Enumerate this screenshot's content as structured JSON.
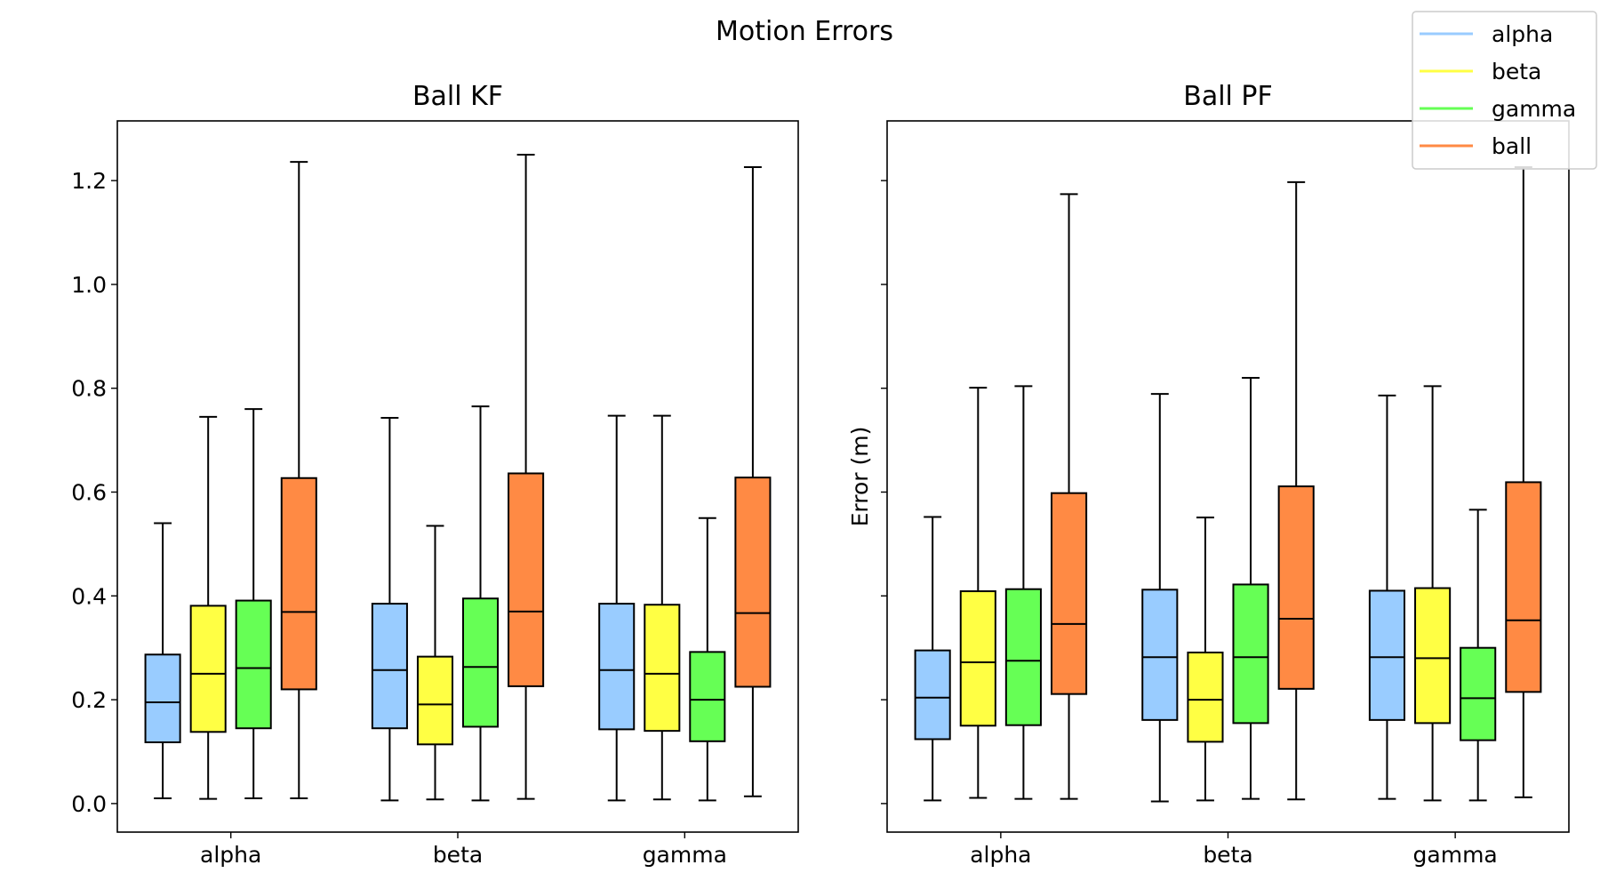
{
  "figure_title": "Motion Errors",
  "chart_data": [
    {
      "type": "box",
      "title": "Ball KF",
      "xlabel": "",
      "ylabel": "",
      "categories": [
        "alpha",
        "beta",
        "gamma"
      ],
      "ylim": [
        -0.055,
        1.315
      ],
      "yticks": [
        "0.0",
        "0.2",
        "0.4",
        "0.6",
        "0.8",
        "1.0",
        "1.2"
      ],
      "show_ytick_labels": true,
      "series": [
        {
          "name": "alpha",
          "color": "#99ccff",
          "boxes": [
            {
              "min": 0.01,
              "q1": 0.118,
              "median": 0.195,
              "q3": 0.287,
              "max": 0.54
            },
            {
              "min": 0.006,
              "q1": 0.145,
              "median": 0.257,
              "q3": 0.385,
              "max": 0.743
            },
            {
              "min": 0.006,
              "q1": 0.143,
              "median": 0.257,
              "q3": 0.385,
              "max": 0.747
            }
          ]
        },
        {
          "name": "beta",
          "color": "#ffff44",
          "boxes": [
            {
              "min": 0.009,
              "q1": 0.138,
              "median": 0.25,
              "q3": 0.381,
              "max": 0.745
            },
            {
              "min": 0.008,
              "q1": 0.114,
              "median": 0.191,
              "q3": 0.283,
              "max": 0.535
            },
            {
              "min": 0.008,
              "q1": 0.14,
              "median": 0.25,
              "q3": 0.383,
              "max": 0.747
            }
          ]
        },
        {
          "name": "gamma",
          "color": "#66ff55",
          "boxes": [
            {
              "min": 0.01,
              "q1": 0.145,
              "median": 0.261,
              "q3": 0.391,
              "max": 0.76
            },
            {
              "min": 0.006,
              "q1": 0.148,
              "median": 0.263,
              "q3": 0.395,
              "max": 0.765
            },
            {
              "min": 0.006,
              "q1": 0.12,
              "median": 0.2,
              "q3": 0.292,
              "max": 0.55
            }
          ]
        },
        {
          "name": "ball",
          "color": "#ff8a44",
          "boxes": [
            {
              "min": 0.01,
              "q1": 0.22,
              "median": 0.369,
              "q3": 0.627,
              "max": 1.236
            },
            {
              "min": 0.009,
              "q1": 0.226,
              "median": 0.37,
              "q3": 0.636,
              "max": 1.25
            },
            {
              "min": 0.014,
              "q1": 0.225,
              "median": 0.367,
              "q3": 0.628,
              "max": 1.226
            }
          ]
        }
      ]
    },
    {
      "type": "box",
      "title": "Ball PF",
      "xlabel": "",
      "ylabel": "Error (m)",
      "categories": [
        "alpha",
        "beta",
        "gamma"
      ],
      "ylim": [
        -0.055,
        1.315
      ],
      "yticks": [
        "0.0",
        "0.2",
        "0.4",
        "0.6",
        "0.8",
        "1.0",
        "1.2"
      ],
      "show_ytick_labels": false,
      "series": [
        {
          "name": "alpha",
          "color": "#99ccff",
          "boxes": [
            {
              "min": 0.006,
              "q1": 0.124,
              "median": 0.204,
              "q3": 0.295,
              "max": 0.552
            },
            {
              "min": 0.004,
              "q1": 0.161,
              "median": 0.282,
              "q3": 0.412,
              "max": 0.789
            },
            {
              "min": 0.009,
              "q1": 0.161,
              "median": 0.282,
              "q3": 0.41,
              "max": 0.786
            }
          ]
        },
        {
          "name": "beta",
          "color": "#ffff44",
          "boxes": [
            {
              "min": 0.011,
              "q1": 0.15,
              "median": 0.272,
              "q3": 0.409,
              "max": 0.801
            },
            {
              "min": 0.006,
              "q1": 0.119,
              "median": 0.2,
              "q3": 0.291,
              "max": 0.551
            },
            {
              "min": 0.006,
              "q1": 0.155,
              "median": 0.28,
              "q3": 0.415,
              "max": 0.804
            }
          ]
        },
        {
          "name": "gamma",
          "color": "#66ff55",
          "boxes": [
            {
              "min": 0.009,
              "q1": 0.151,
              "median": 0.275,
              "q3": 0.413,
              "max": 0.804
            },
            {
              "min": 0.009,
              "q1": 0.155,
              "median": 0.282,
              "q3": 0.422,
              "max": 0.82
            },
            {
              "min": 0.006,
              "q1": 0.122,
              "median": 0.203,
              "q3": 0.3,
              "max": 0.566
            }
          ]
        },
        {
          "name": "ball",
          "color": "#ff8a44",
          "boxes": [
            {
              "min": 0.009,
              "q1": 0.211,
              "median": 0.346,
              "q3": 0.598,
              "max": 1.174
            },
            {
              "min": 0.008,
              "q1": 0.221,
              "median": 0.356,
              "q3": 0.611,
              "max": 1.197
            },
            {
              "min": 0.012,
              "q1": 0.215,
              "median": 0.353,
              "q3": 0.619,
              "max": 1.226
            }
          ]
        }
      ]
    }
  ],
  "legend": {
    "placement": "top-right",
    "items": [
      {
        "label": "alpha",
        "color": "#99ccff"
      },
      {
        "label": "beta",
        "color": "#ffff44"
      },
      {
        "label": "gamma",
        "color": "#66ff55"
      },
      {
        "label": "ball",
        "color": "#ff8a44"
      }
    ]
  }
}
